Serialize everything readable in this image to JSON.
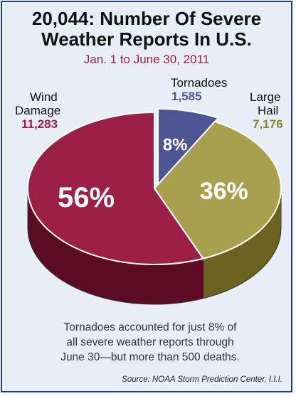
{
  "chart_data": {
    "type": "pie",
    "title_line1": "20,044: Number Of Severe",
    "title_line2": "Weather Reports In U.S.",
    "subtitle": "Jan. 1 to June 30, 2011",
    "slices": [
      {
        "label_line1": "Tornadoes",
        "label_line2": "",
        "count": "1,585",
        "value": 1585,
        "percent": "8%",
        "color": "#4e5593",
        "side_color": "#2e3262"
      },
      {
        "label_line1": "Large",
        "label_line2": "Hail",
        "count": "7,176",
        "value": 7176,
        "percent": "36%",
        "color": "#a9a04d",
        "side_color": "#6a6420"
      },
      {
        "label_line1": "Wind",
        "label_line2": "Damage",
        "count": "11,283",
        "value": 11283,
        "percent": "56%",
        "color": "#9c1f47",
        "side_color": "#5c0b24"
      }
    ],
    "note_line1": "Tornadoes accounted for just 8% of",
    "note_line2": "all severe weather reports through",
    "note_line3": "June 30—but more than 500 deaths.",
    "source": "Source: NOAA Storm Prediction Center, I.I.I."
  }
}
